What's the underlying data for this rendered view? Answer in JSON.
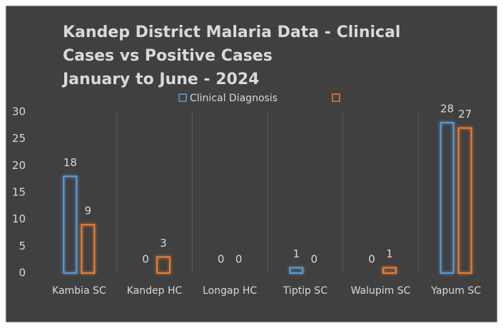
{
  "chart_data": {
    "type": "bar",
    "title": [
      "Kandep District Malaria Data - Clinical",
      "Cases vs Positive Cases",
      "January to June - 2024"
    ],
    "categories": [
      "Kambia SC",
      "Kandep HC",
      "Longap HC",
      "Tiptip SC",
      "Walupim SC",
      "Yapum SC"
    ],
    "series": [
      {
        "name": "Clinical Diagnosis",
        "color": "#5b9bd5",
        "values": [
          18,
          0,
          0,
          1,
          0,
          28
        ]
      },
      {
        "color": "#ed7d31",
        "values": [
          9,
          3,
          0,
          0,
          1,
          27
        ]
      }
    ],
    "ylim": [
      0,
      30
    ],
    "yticks": [
      0,
      5,
      10,
      15,
      20,
      25,
      30
    ],
    "grid": false,
    "category_separators": true
  }
}
